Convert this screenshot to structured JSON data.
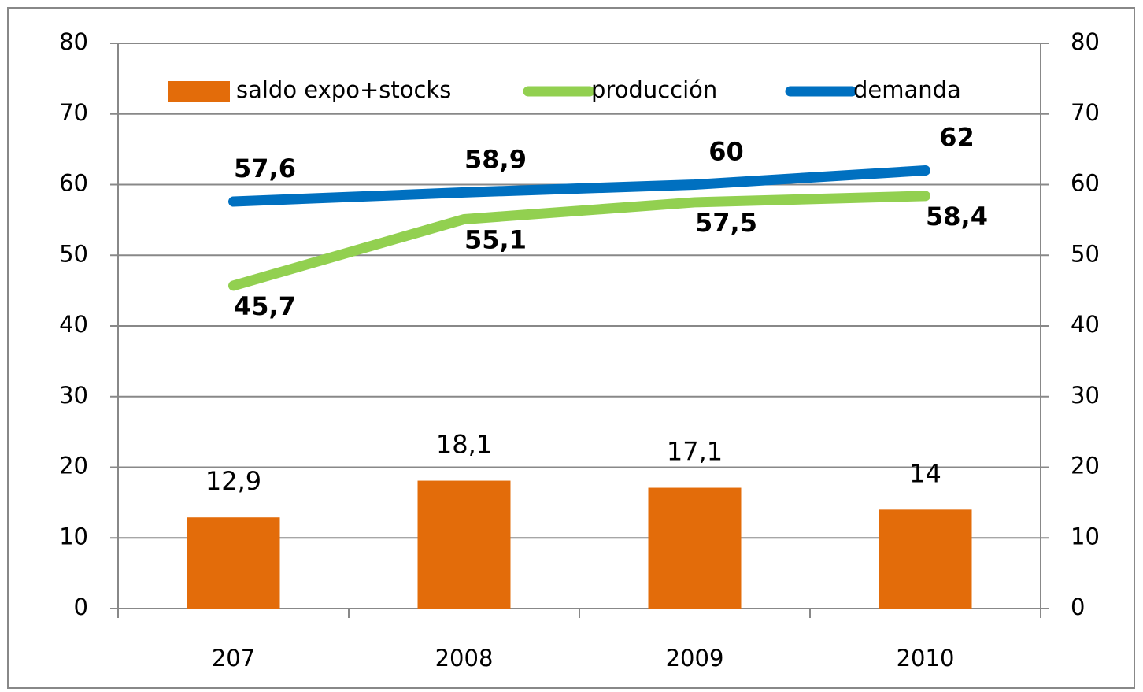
{
  "chart_data": {
    "type": "combo",
    "categories": [
      "207",
      "2008",
      "2009",
      "2010"
    ],
    "series": [
      {
        "name": "saldo expo+stocks",
        "type": "bar",
        "color": "#e36c0a",
        "label_color": "#000000",
        "values": [
          12.9,
          18.1,
          17.1,
          14
        ],
        "value_labels": [
          "12,9",
          "18,1",
          "17,1",
          "14"
        ]
      },
      {
        "name": "producción",
        "type": "line",
        "axis": "y2",
        "color": "#92d050",
        "label_color": "#00b050",
        "values": [
          45.7,
          55.1,
          57.5,
          58.4
        ],
        "value_labels": [
          "45,7",
          "55,1",
          "57,5",
          "58,4"
        ]
      },
      {
        "name": "demanda",
        "type": "line",
        "axis": "y2",
        "color": "#0070c0",
        "label_color": "#0070c0",
        "values": [
          57.6,
          58.9,
          60,
          62
        ],
        "value_labels": [
          "57,6",
          "58,9",
          "60",
          "62"
        ]
      }
    ],
    "ylim": [
      0,
      80
    ],
    "yticks": [
      0,
      10,
      20,
      30,
      40,
      50,
      60,
      70,
      80
    ],
    "y2lim": [
      0,
      80
    ],
    "y2ticks": [
      0,
      10,
      20,
      30,
      40,
      50,
      60,
      70,
      80
    ],
    "grid": true,
    "legend": "top"
  }
}
